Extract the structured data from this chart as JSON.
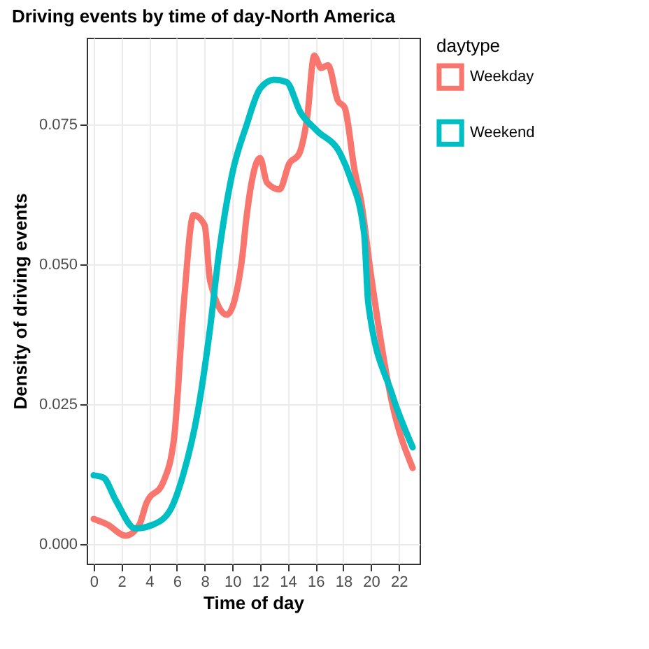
{
  "chart_data": {
    "type": "line",
    "title": "Driving events by time of day-North America",
    "xlabel": "Time of day",
    "ylabel": "Density of driving events",
    "legend_title": "daytype",
    "xlim": [
      -0.5,
      23.5
    ],
    "xticks": [
      0,
      2,
      4,
      6,
      8,
      10,
      12,
      14,
      16,
      18,
      20,
      22
    ],
    "ylim": [
      -0.0035,
      0.0905
    ],
    "yticks": [
      {
        "value": 0,
        "label": "0.000"
      },
      {
        "value": 0.025,
        "label": "0.025"
      },
      {
        "value": 0.05,
        "label": "0.050"
      },
      {
        "value": 0.075,
        "label": "0.075"
      }
    ],
    "grid": true,
    "legend": "right",
    "series": [
      {
        "name": "Weekday",
        "color": "#f8766d",
        "x": [
          0,
          1,
          2.3,
          3.3,
          3.8,
          5,
          5.8,
          6.5,
          7.2,
          8,
          8.4,
          9.6,
          10.7,
          11,
          12,
          12.5,
          13.4,
          14.1,
          14.8,
          15.4,
          15.9,
          16.4,
          16.9,
          17.6,
          18.1,
          18.8,
          19.3,
          20,
          21.5,
          23
        ],
        "values": [
          0.0045,
          0.0035,
          0.0015,
          0.0035,
          0.0073,
          0.011,
          0.019,
          0.043,
          0.0588,
          0.057,
          0.047,
          0.041,
          0.051,
          0.058,
          0.069,
          0.0646,
          0.0634,
          0.068,
          0.0697,
          0.0764,
          0.0873,
          0.0851,
          0.0856,
          0.0793,
          0.078,
          0.067,
          0.061,
          0.048,
          0.0254,
          0.0136
        ]
      },
      {
        "name": "Weekend",
        "color": "#00bfc4",
        "x": [
          0,
          0.7,
          1.6,
          3,
          4.3,
          5.5,
          6.5,
          7.5,
          8.4,
          9,
          10,
          11,
          12,
          13,
          13.9,
          14.9,
          16.1,
          17.8,
          18.5,
          19.5,
          19.8,
          21.5,
          23
        ],
        "values": [
          0.0123,
          0.0119,
          0.0078,
          0.0028,
          0.0035,
          0.006,
          0.0128,
          0.0236,
          0.0387,
          0.0513,
          0.0663,
          0.0747,
          0.0814,
          0.083,
          0.0826,
          0.0772,
          0.0739,
          0.0697,
          0.0655,
          0.0555,
          0.043,
          0.0269,
          0.0173
        ]
      }
    ]
  }
}
